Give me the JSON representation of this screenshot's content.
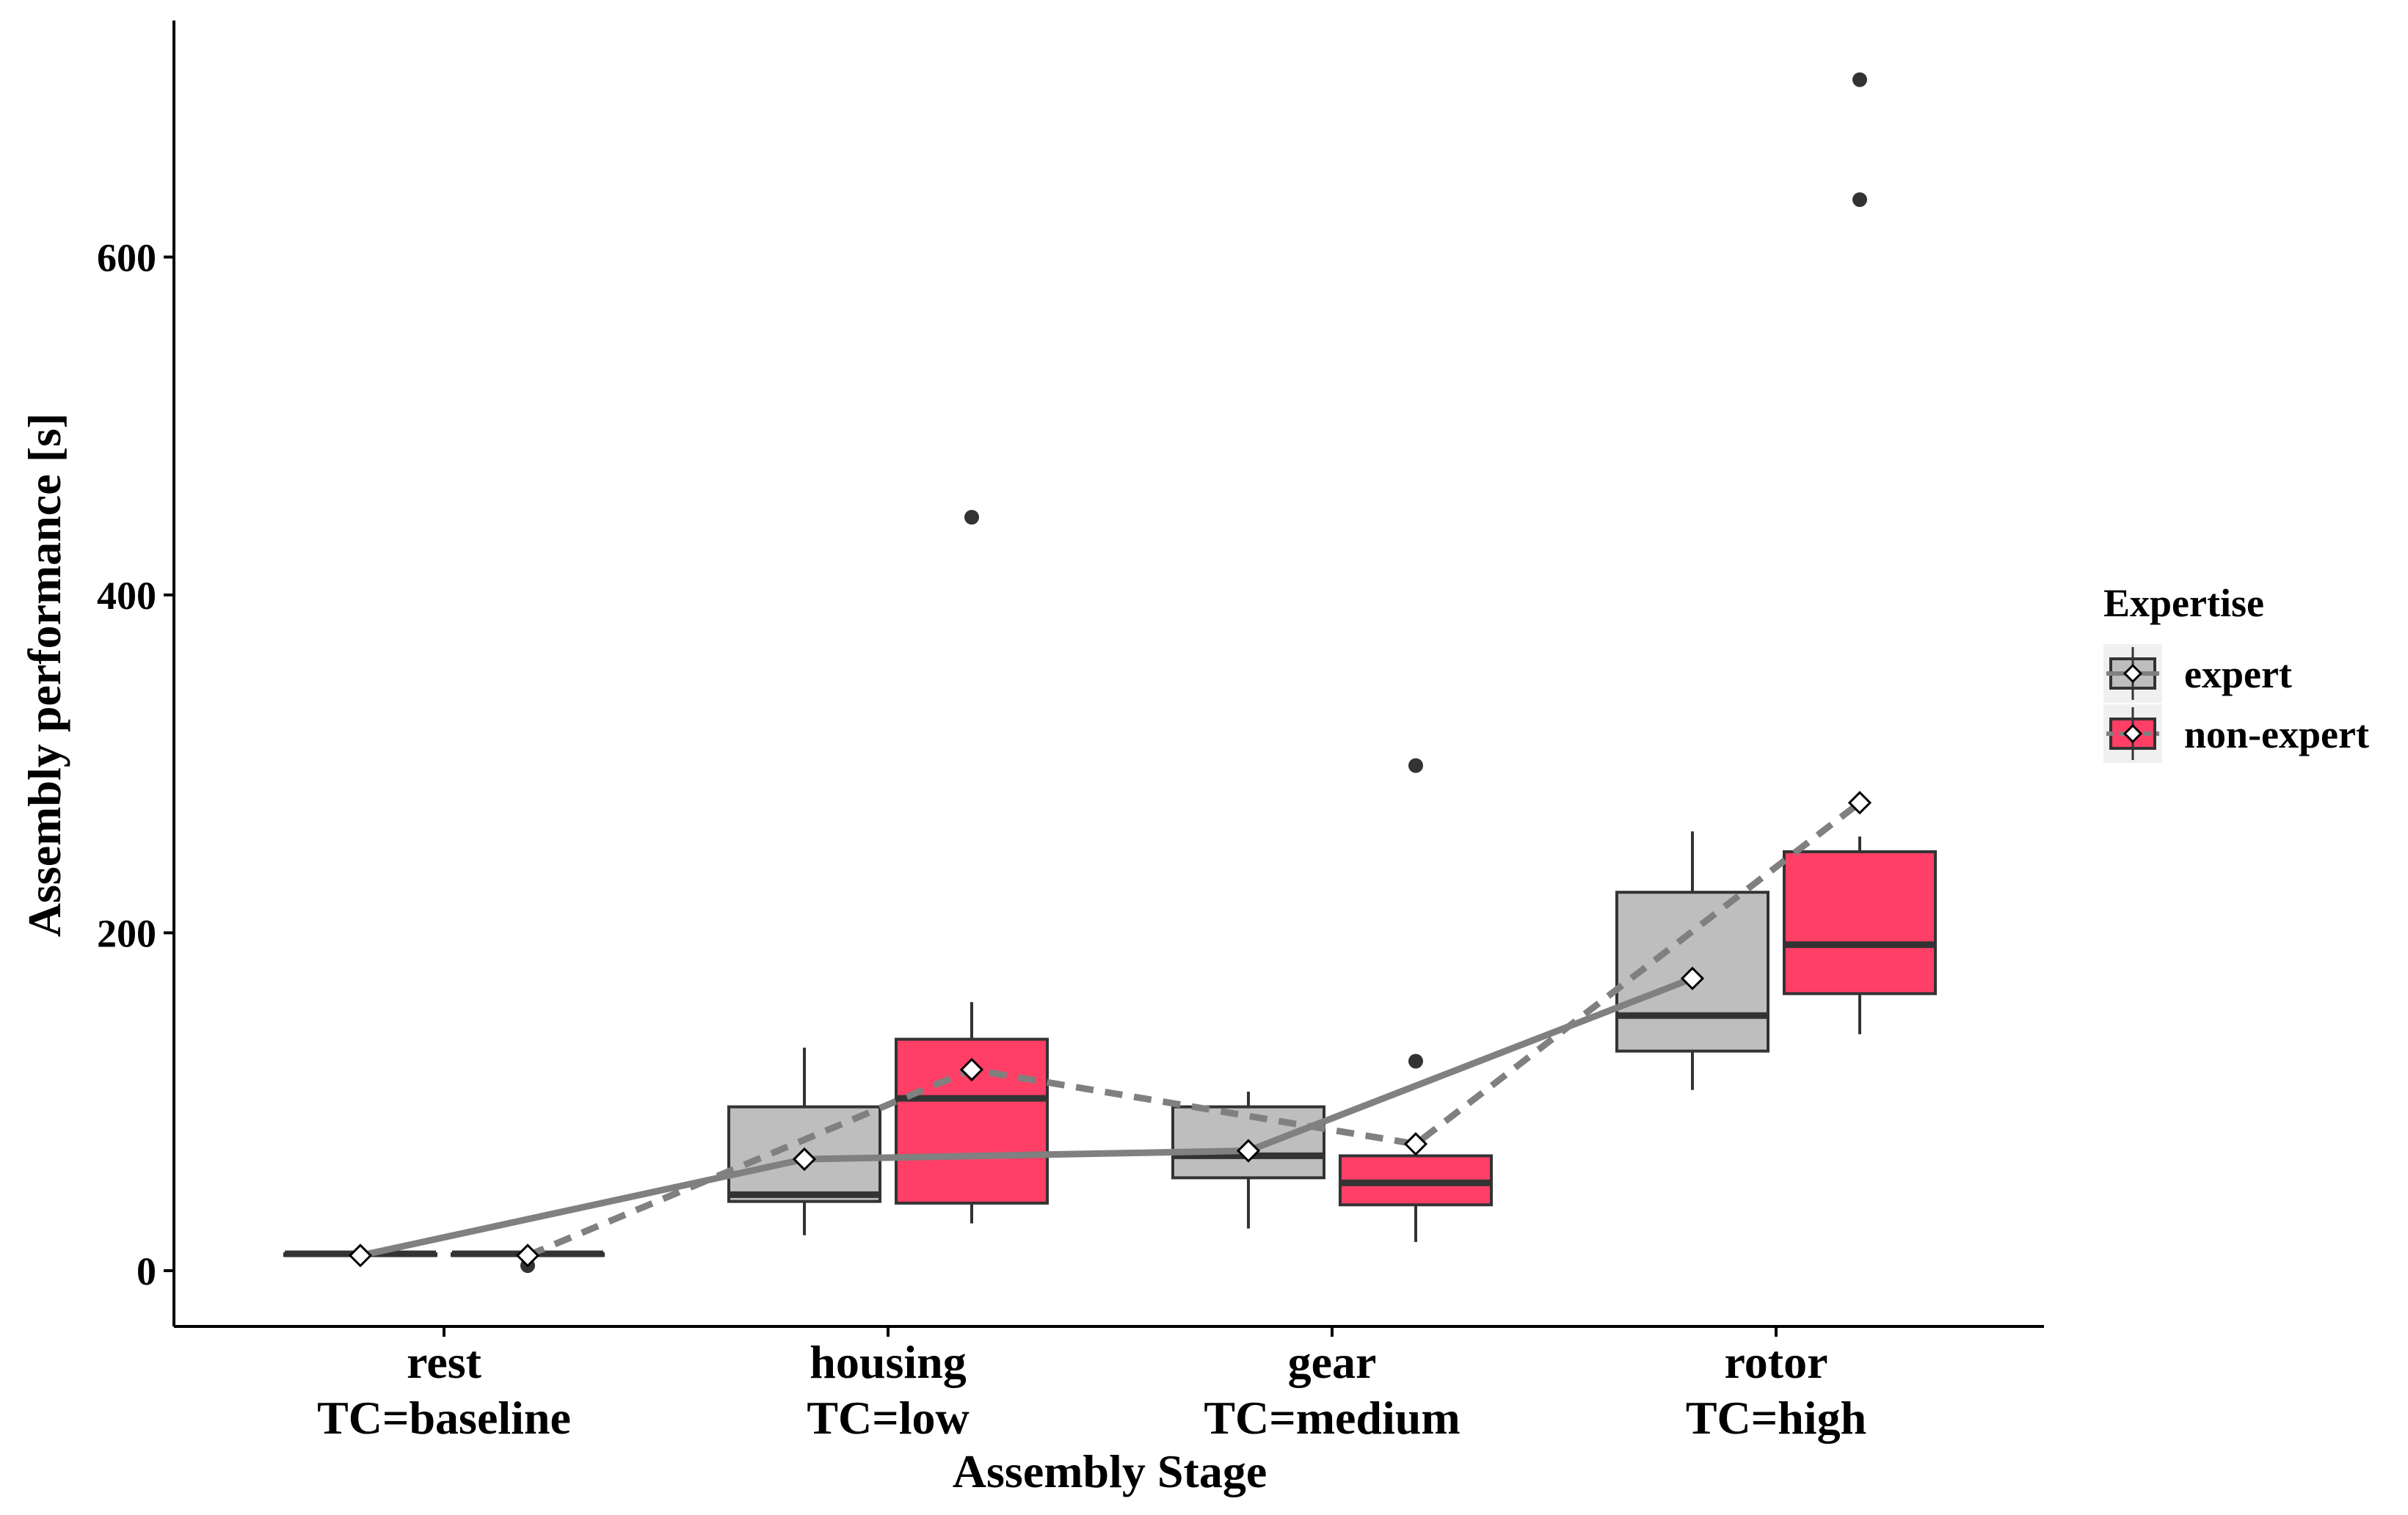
{
  "chart_data": {
    "type": "box",
    "xlabel": "Assembly Stage",
    "ylabel": "Assembly performance [s]",
    "ylim": [
      -33,
      740
    ],
    "yticks": [
      0,
      200,
      400,
      600
    ],
    "categories": [
      {
        "line1": "rest",
        "line2": "TC=baseline"
      },
      {
        "line1": "housing",
        "line2": "TC=low"
      },
      {
        "line1": "gear",
        "line2": "TC=medium"
      },
      {
        "line1": "rotor",
        "line2": "TC=high"
      }
    ],
    "legend": {
      "title": "Expertise",
      "position": "right"
    },
    "series": [
      {
        "name": "expert",
        "color": "#bebebe",
        "line_style": "solid",
        "boxes": [
          {
            "min": 9,
            "q1": 9,
            "median": 10,
            "q3": 10,
            "max": 11,
            "mean": 9,
            "outliers": []
          },
          {
            "min": 21,
            "q1": 41,
            "median": 45,
            "q3": 97,
            "max": 132,
            "mean": 66,
            "outliers": []
          },
          {
            "min": 25,
            "q1": 55,
            "median": 68,
            "q3": 97,
            "max": 106,
            "mean": 71,
            "outliers": []
          },
          {
            "min": 107,
            "q1": 130,
            "median": 151,
            "q3": 224,
            "max": 260,
            "mean": 173,
            "outliers": []
          }
        ]
      },
      {
        "name": "non-expert",
        "color": "#ff3f66",
        "line_style": "dashed",
        "boxes": [
          {
            "min": 9,
            "q1": 9,
            "median": 10,
            "q3": 10,
            "max": 11,
            "mean": 9,
            "outliers": [
              3
            ]
          },
          {
            "min": 28,
            "q1": 40,
            "median": 102,
            "q3": 137,
            "max": 159,
            "mean": 119,
            "outliers": [
              446
            ]
          },
          {
            "min": 17,
            "q1": 39,
            "median": 52,
            "q3": 68,
            "max": 73,
            "mean": 75,
            "outliers": [
              124,
              299
            ]
          },
          {
            "min": 140,
            "q1": 164,
            "median": 193,
            "q3": 248,
            "max": 257,
            "mean": 277,
            "outliers": [
              634,
              705
            ]
          }
        ]
      }
    ]
  }
}
